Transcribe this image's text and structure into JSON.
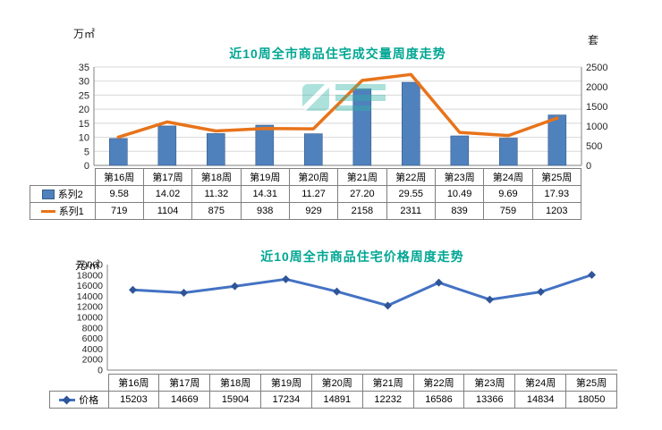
{
  "colors": {
    "title": "#00A693",
    "bar_fill": "#4F81BD",
    "bar_edge": "#385D8A",
    "volume_line": "#E8731A",
    "price_line": "#4472C4",
    "price_marker": "#2F5597",
    "grid": "#D8D8D8",
    "axis": "#808080",
    "table_border": "#7F7F7F",
    "watermark": "#35B5A9"
  },
  "volume_chart": {
    "title": "近10周全市商品住宅成交量周度走势",
    "left_axis_unit": "万㎡",
    "right_axis_unit": "套",
    "left_ticks": [
      "35",
      "30",
      "25",
      "20",
      "15",
      "10",
      "5",
      "0"
    ],
    "right_ticks": [
      "2500",
      "2000",
      "1500",
      "1000",
      "500",
      "0"
    ],
    "categories": [
      "第16周",
      "第17周",
      "第18周",
      "第19周",
      "第20周",
      "第21周",
      "第22周",
      "第23周",
      "第24周",
      "第25周"
    ],
    "table_rows": [
      {
        "label": "系列2",
        "swatch": "bar",
        "values": [
          "9.58",
          "14.02",
          "11.32",
          "14.31",
          "11.27",
          "27.20",
          "29.55",
          "10.49",
          "9.69",
          "17.93"
        ]
      },
      {
        "label": "系列1",
        "swatch": "line",
        "values": [
          "719",
          "1104",
          "875",
          "938",
          "929",
          "2158",
          "2311",
          "839",
          "759",
          "1203"
        ]
      }
    ]
  },
  "price_chart": {
    "title": "近10周全市商品住宅价格周度走势",
    "axis_unit": "元/㎡",
    "ticks": [
      "20000",
      "18000",
      "16000",
      "14000",
      "12000",
      "10000",
      "8000",
      "6000",
      "4000",
      "2000",
      "0"
    ],
    "categories": [
      "第16周",
      "第17周",
      "第18周",
      "第19周",
      "第20周",
      "第21周",
      "第22周",
      "第23周",
      "第24周",
      "第25周"
    ],
    "table_rows": [
      {
        "label": "价格",
        "swatch": "line-diamond",
        "values": [
          "15203",
          "14669",
          "15904",
          "17234",
          "14891",
          "12232",
          "16586",
          "13366",
          "14834",
          "18050"
        ]
      }
    ]
  },
  "chart_data": [
    {
      "type": "bar",
      "subtype": "combo-bar-line-dual-axis",
      "title": "近10周全市商品住宅成交量周度走势",
      "categories": [
        "第16周",
        "第17周",
        "第18周",
        "第19周",
        "第20周",
        "第21周",
        "第22周",
        "第23周",
        "第24周",
        "第25周"
      ],
      "series": [
        {
          "name": "系列2",
          "plot": "bar",
          "axis": "left",
          "unit": "万㎡",
          "values": [
            9.58,
            14.02,
            11.32,
            14.31,
            11.27,
            27.2,
            29.55,
            10.49,
            9.69,
            17.93
          ]
        },
        {
          "name": "系列1",
          "plot": "line",
          "axis": "right",
          "unit": "套",
          "values": [
            719,
            1104,
            875,
            938,
            929,
            2158,
            2311,
            839,
            759,
            1203
          ]
        }
      ],
      "left_ylim": [
        0,
        35
      ],
      "right_ylim": [
        0,
        2500
      ],
      "grid": true,
      "legend_position": "data-table-left"
    },
    {
      "type": "line",
      "title": "近10周全市商品住宅价格周度走势",
      "categories": [
        "第16周",
        "第17周",
        "第18周",
        "第19周",
        "第20周",
        "第21周",
        "第22周",
        "第23周",
        "第24周",
        "第25周"
      ],
      "series": [
        {
          "name": "价格",
          "values": [
            15203,
            14669,
            15904,
            17234,
            14891,
            12232,
            16586,
            13366,
            14834,
            18050
          ]
        }
      ],
      "ylabel": "元/㎡",
      "ylim": [
        0,
        20000
      ],
      "grid": false,
      "marker": "diamond",
      "legend_position": "data-table-left"
    }
  ]
}
